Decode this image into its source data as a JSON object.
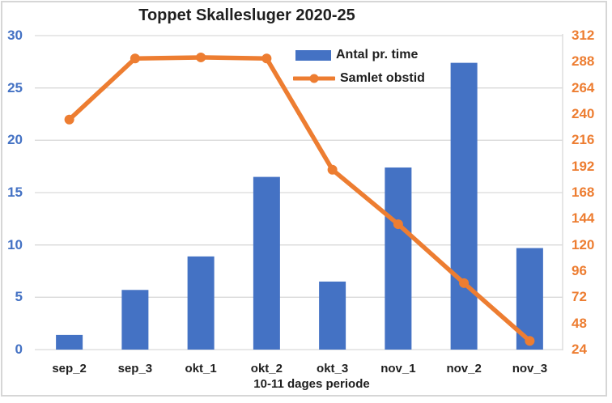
{
  "chart_data": {
    "type": "combo",
    "title": "Toppet Skallesluger 2020-25",
    "xlabel": "10-11 dages periode",
    "categories": [
      "sep_2",
      "sep_3",
      "okt_1",
      "okt_2",
      "okt_3",
      "nov_1",
      "nov_2",
      "nov_3"
    ],
    "series": [
      {
        "name": "Antal pr. time",
        "type": "bar",
        "axis": "left",
        "color": "#4472C4",
        "values": [
          1.4,
          5.7,
          8.9,
          16.5,
          6.5,
          17.4,
          27.4,
          9.7
        ]
      },
      {
        "name": "Samlet obstid",
        "type": "line",
        "axis": "right",
        "color": "#ED7D31",
        "values": [
          235,
          291,
          292,
          291,
          189,
          139,
          85,
          32
        ]
      }
    ],
    "left_axis": {
      "min": 0,
      "max": 30,
      "step": 5,
      "ticks": [
        30,
        25,
        20,
        15,
        10,
        5,
        0
      ],
      "color": "#4472C4"
    },
    "right_axis": {
      "min": 24,
      "max": 312,
      "step": 24,
      "ticks": [
        312,
        288,
        264,
        240,
        216,
        192,
        168,
        144,
        120,
        96,
        72,
        48,
        24
      ],
      "color": "#ED7D31"
    },
    "grid": true,
    "gridline_color": "#D9D9D9",
    "text_color": "#1f1f1f",
    "legend_position": "inside-top-right"
  }
}
